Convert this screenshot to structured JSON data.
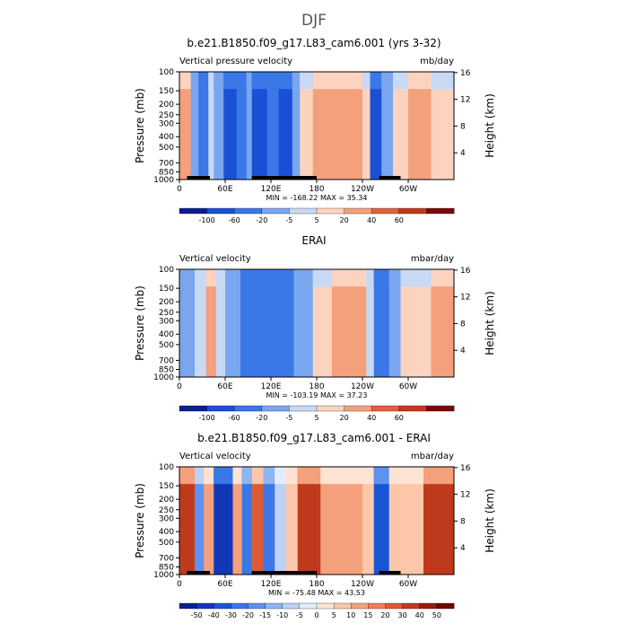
{
  "figure_title": "DJF",
  "panels": [
    {
      "title": "b.e21.B1850.f09_g17.L83_cam6.001 (yrs 3-32)",
      "left_label": "Vertical pressure velocity",
      "right_label": "mb/day",
      "y_label_left": "Pressure (mb)",
      "y_label_right": "Height (km)",
      "stats": "MIN = -168.22   MAX =  35.34",
      "colorbar_labels": [
        "-100",
        "-60",
        "-20",
        "-5",
        "5",
        "20",
        "40",
        "60"
      ]
    },
    {
      "title": "ERAI",
      "left_label": "Vertical velocity",
      "right_label": "mbar/day",
      "y_label_left": "Pressure (mb)",
      "y_label_right": "Height (km)",
      "stats": "MIN = -103.19   MAX =  37.23",
      "colorbar_labels": [
        "-100",
        "-60",
        "-20",
        "-5",
        "5",
        "20",
        "40",
        "60"
      ]
    },
    {
      "title": "b.e21.B1850.f09_g17.L83_cam6.001 - ERAI",
      "left_label": "Vertical velocity",
      "right_label": "mbar/day",
      "y_label_left": "Pressure (mb)",
      "y_label_right": "Height (km)",
      "stats": "MIN = -75.48   MAX =  43.53",
      "colorbar_labels": [
        "-50",
        "-40",
        "-30",
        "-20",
        "-15",
        "-10",
        "-5",
        "0",
        "5",
        "10",
        "15",
        "20",
        "30",
        "40",
        "50"
      ]
    }
  ],
  "chart_data": [
    {
      "type": "heatmap",
      "title": "b.e21.B1850.f09_g17.L83_cam6.001 (yrs 3-32)",
      "xlabel": "",
      "ylabel": "Pressure (mb)",
      "y2label": "Height (km)",
      "x_tick_labels": [
        "0",
        "60E",
        "120E",
        "180",
        "120W",
        "60W"
      ],
      "y_tick_labels": [
        "100",
        "150",
        "200",
        "250",
        "300",
        "400",
        "500",
        "700",
        "850",
        "1000"
      ],
      "y2_tick_labels": [
        "16",
        "12",
        "8",
        "4"
      ],
      "levels": [
        -100,
        -60,
        -20,
        -5,
        5,
        20,
        40,
        60
      ],
      "min": -168.22,
      "max": 35.34,
      "units": "mb/day",
      "regions": [
        {
          "lon": [
            0,
            15
          ],
          "value": 20
        },
        {
          "lon": [
            15,
            25
          ],
          "value": -20
        },
        {
          "lon": [
            25,
            38
          ],
          "value": -60
        },
        {
          "lon": [
            38,
            45
          ],
          "value": -5
        },
        {
          "lon": [
            45,
            58
          ],
          "value": -20
        },
        {
          "lon": [
            58,
            75
          ],
          "value": -100
        },
        {
          "lon": [
            75,
            88
          ],
          "value": -60
        },
        {
          "lon": [
            88,
            95
          ],
          "value": -20
        },
        {
          "lon": [
            95,
            115
          ],
          "value": -100
        },
        {
          "lon": [
            115,
            130
          ],
          "value": -60
        },
        {
          "lon": [
            130,
            148
          ],
          "value": -100
        },
        {
          "lon": [
            148,
            158
          ],
          "value": -20
        },
        {
          "lon": [
            158,
            175
          ],
          "value": 5
        },
        {
          "lon": [
            175,
            240
          ],
          "value": 20
        },
        {
          "lon": [
            240,
            250
          ],
          "value": 5
        },
        {
          "lon": [
            250,
            265
          ],
          "value": -100
        },
        {
          "lon": [
            265,
            280
          ],
          "value": -20
        },
        {
          "lon": [
            280,
            300
          ],
          "value": 5
        },
        {
          "lon": [
            300,
            330
          ],
          "value": 20
        },
        {
          "lon": [
            330,
            360
          ],
          "value": 5
        }
      ]
    },
    {
      "type": "heatmap",
      "title": "ERAI",
      "xlabel": "",
      "ylabel": "Pressure (mb)",
      "y2label": "Height (km)",
      "x_tick_labels": [
        "0",
        "60E",
        "120E",
        "180",
        "120W",
        "60W"
      ],
      "y_tick_labels": [
        "100",
        "150",
        "200",
        "250",
        "300",
        "400",
        "500",
        "700",
        "850",
        "1000"
      ],
      "y2_tick_labels": [
        "16",
        "12",
        "8",
        "4"
      ],
      "levels": [
        -100,
        -60,
        -20,
        -5,
        5,
        20,
        40,
        60
      ],
      "min": -103.19,
      "max": 37.23,
      "units": "mbar/day",
      "regions": [
        {
          "lon": [
            0,
            20
          ],
          "value": -20
        },
        {
          "lon": [
            20,
            35
          ],
          "value": -5
        },
        {
          "lon": [
            35,
            48
          ],
          "value": 20
        },
        {
          "lon": [
            48,
            60
          ],
          "value": -5
        },
        {
          "lon": [
            60,
            80
          ],
          "value": -20
        },
        {
          "lon": [
            80,
            150
          ],
          "value": -60
        },
        {
          "lon": [
            150,
            175
          ],
          "value": -20
        },
        {
          "lon": [
            175,
            200
          ],
          "value": 5
        },
        {
          "lon": [
            200,
            245
          ],
          "value": 20
        },
        {
          "lon": [
            245,
            255
          ],
          "value": -5
        },
        {
          "lon": [
            255,
            275
          ],
          "value": -60
        },
        {
          "lon": [
            275,
            290
          ],
          "value": -20
        },
        {
          "lon": [
            290,
            330
          ],
          "value": 5
        },
        {
          "lon": [
            330,
            360
          ],
          "value": 20
        }
      ]
    },
    {
      "type": "heatmap",
      "title": "b.e21.B1850.f09_g17.L83_cam6.001 - ERAI",
      "xlabel": "",
      "ylabel": "Pressure (mb)",
      "y2label": "Height (km)",
      "x_tick_labels": [
        "0",
        "60E",
        "120E",
        "180",
        "120W",
        "60W"
      ],
      "y_tick_labels": [
        "100",
        "150",
        "200",
        "250",
        "300",
        "400",
        "500",
        "700",
        "850",
        "1000"
      ],
      "y2_tick_labels": [
        "16",
        "12",
        "8",
        "4"
      ],
      "levels": [
        -50,
        -40,
        -30,
        -20,
        -15,
        -10,
        -5,
        0,
        5,
        10,
        15,
        20,
        30,
        40,
        50
      ],
      "min": -75.48,
      "max": 43.53,
      "units": "mbar/day",
      "regions": [
        {
          "lon": [
            0,
            20
          ],
          "value": 30
        },
        {
          "lon": [
            20,
            32
          ],
          "value": -20
        },
        {
          "lon": [
            32,
            45
          ],
          "value": 10
        },
        {
          "lon": [
            45,
            70
          ],
          "value": -50
        },
        {
          "lon": [
            70,
            82
          ],
          "value": 10
        },
        {
          "lon": [
            82,
            95
          ],
          "value": -30
        },
        {
          "lon": [
            95,
            110
          ],
          "value": 20
        },
        {
          "lon": [
            110,
            125
          ],
          "value": -30
        },
        {
          "lon": [
            125,
            140
          ],
          "value": -10
        },
        {
          "lon": [
            140,
            155
          ],
          "value": 5
        },
        {
          "lon": [
            155,
            185
          ],
          "value": 30
        },
        {
          "lon": [
            185,
            240
          ],
          "value": 10
        },
        {
          "lon": [
            240,
            255
          ],
          "value": 5
        },
        {
          "lon": [
            255,
            275
          ],
          "value": -40
        },
        {
          "lon": [
            275,
            290
          ],
          "value": 5
        },
        {
          "lon": [
            290,
            320
          ],
          "value": 5
        },
        {
          "lon": [
            320,
            360
          ],
          "value": 30
        }
      ]
    }
  ]
}
